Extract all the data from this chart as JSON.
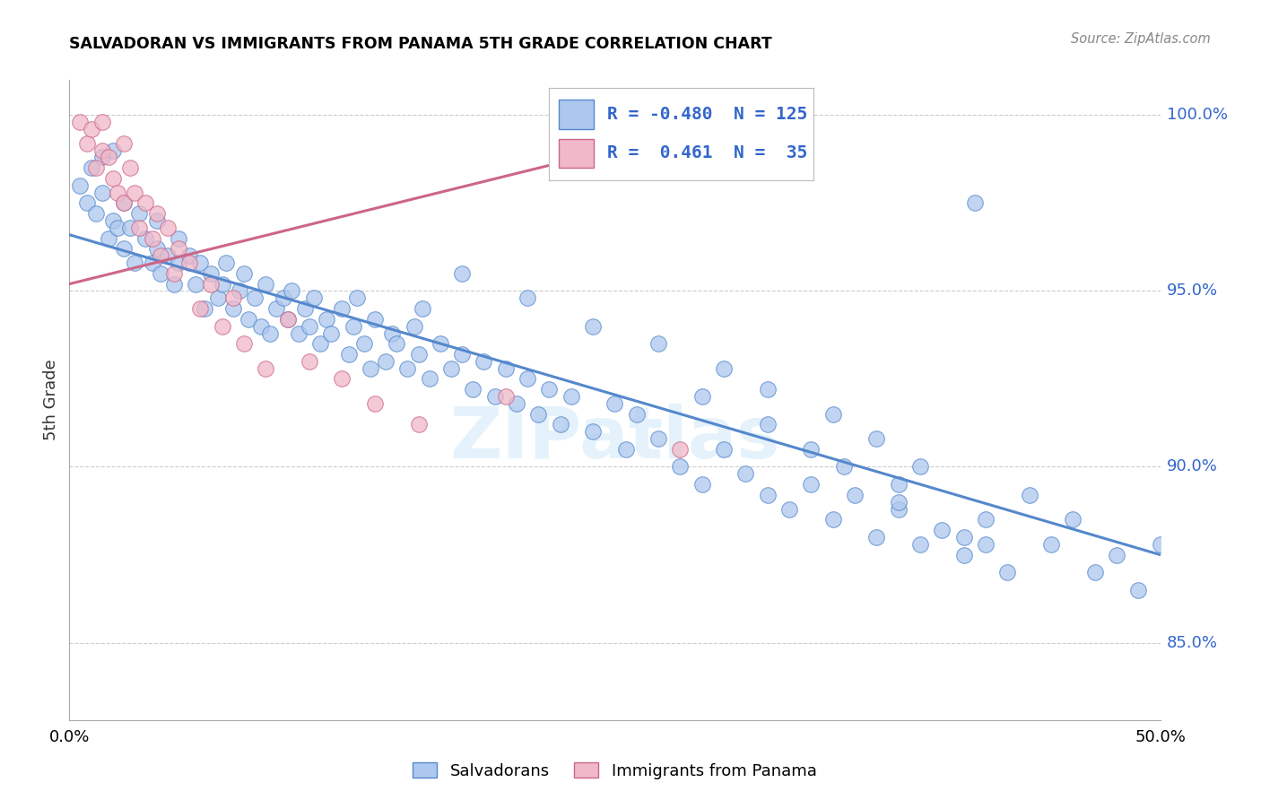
{
  "title": "SALVADORAN VS IMMIGRANTS FROM PANAMA 5TH GRADE CORRELATION CHART",
  "source": "Source: ZipAtlas.com",
  "ylabel": "5th Grade",
  "xlim": [
    0.0,
    0.5
  ],
  "ylim": [
    0.828,
    1.01
  ],
  "yticks": [
    0.85,
    0.9,
    0.95,
    1.0
  ],
  "ytick_labels": [
    "85.0%",
    "90.0%",
    "95.0%",
    "100.0%"
  ],
  "xticks": [
    0.0,
    0.1,
    0.2,
    0.3,
    0.4,
    0.5
  ],
  "blue_color": "#adc8ee",
  "blue_edge_color": "#5588cc",
  "pink_color": "#f0b8c8",
  "pink_edge_color": "#cc6688",
  "legend_R1": "-0.480",
  "legend_N1": "125",
  "legend_R2": "0.461",
  "legend_N2": "35",
  "watermark": "ZIPatlas",
  "blue_line_x": [
    0.0,
    0.5
  ],
  "blue_line_y": [
    0.966,
    0.875
  ],
  "pink_line_x": [
    0.0,
    0.3
  ],
  "pink_line_y": [
    0.952,
    0.998
  ],
  "blue_scatter_x": [
    0.005,
    0.008,
    0.01,
    0.012,
    0.015,
    0.015,
    0.018,
    0.02,
    0.02,
    0.022,
    0.025,
    0.025,
    0.028,
    0.03,
    0.032,
    0.035,
    0.038,
    0.04,
    0.04,
    0.042,
    0.045,
    0.048,
    0.05,
    0.05,
    0.055,
    0.058,
    0.06,
    0.062,
    0.065,
    0.068,
    0.07,
    0.072,
    0.075,
    0.078,
    0.08,
    0.082,
    0.085,
    0.088,
    0.09,
    0.092,
    0.095,
    0.098,
    0.1,
    0.102,
    0.105,
    0.108,
    0.11,
    0.112,
    0.115,
    0.118,
    0.12,
    0.125,
    0.128,
    0.13,
    0.132,
    0.135,
    0.138,
    0.14,
    0.145,
    0.148,
    0.15,
    0.155,
    0.158,
    0.16,
    0.162,
    0.165,
    0.17,
    0.175,
    0.18,
    0.185,
    0.19,
    0.195,
    0.2,
    0.205,
    0.21,
    0.215,
    0.22,
    0.225,
    0.23,
    0.24,
    0.25,
    0.255,
    0.26,
    0.27,
    0.28,
    0.29,
    0.3,
    0.31,
    0.32,
    0.33,
    0.34,
    0.35,
    0.36,
    0.37,
    0.38,
    0.39,
    0.4,
    0.41,
    0.42,
    0.43,
    0.18,
    0.21,
    0.24,
    0.27,
    0.3,
    0.32,
    0.35,
    0.37,
    0.39,
    0.415,
    0.44,
    0.46,
    0.48,
    0.5,
    0.34,
    0.38,
    0.42,
    0.45,
    0.47,
    0.49,
    0.29,
    0.32,
    0.355,
    0.38,
    0.41
  ],
  "blue_scatter_y": [
    0.98,
    0.975,
    0.985,
    0.972,
    0.978,
    0.988,
    0.965,
    0.97,
    0.99,
    0.968,
    0.975,
    0.962,
    0.968,
    0.958,
    0.972,
    0.965,
    0.958,
    0.962,
    0.97,
    0.955,
    0.96,
    0.952,
    0.965,
    0.958,
    0.96,
    0.952,
    0.958,
    0.945,
    0.955,
    0.948,
    0.952,
    0.958,
    0.945,
    0.95,
    0.955,
    0.942,
    0.948,
    0.94,
    0.952,
    0.938,
    0.945,
    0.948,
    0.942,
    0.95,
    0.938,
    0.945,
    0.94,
    0.948,
    0.935,
    0.942,
    0.938,
    0.945,
    0.932,
    0.94,
    0.948,
    0.935,
    0.928,
    0.942,
    0.93,
    0.938,
    0.935,
    0.928,
    0.94,
    0.932,
    0.945,
    0.925,
    0.935,
    0.928,
    0.932,
    0.922,
    0.93,
    0.92,
    0.928,
    0.918,
    0.925,
    0.915,
    0.922,
    0.912,
    0.92,
    0.91,
    0.918,
    0.905,
    0.915,
    0.908,
    0.9,
    0.895,
    0.905,
    0.898,
    0.892,
    0.888,
    0.895,
    0.885,
    0.892,
    0.88,
    0.888,
    0.878,
    0.882,
    0.875,
    0.878,
    0.87,
    0.955,
    0.948,
    0.94,
    0.935,
    0.928,
    0.922,
    0.915,
    0.908,
    0.9,
    0.975,
    0.892,
    0.885,
    0.875,
    0.878,
    0.905,
    0.895,
    0.885,
    0.878,
    0.87,
    0.865,
    0.92,
    0.912,
    0.9,
    0.89,
    0.88
  ],
  "pink_scatter_x": [
    0.005,
    0.008,
    0.01,
    0.012,
    0.015,
    0.015,
    0.018,
    0.02,
    0.022,
    0.025,
    0.025,
    0.028,
    0.03,
    0.032,
    0.035,
    0.038,
    0.04,
    0.042,
    0.045,
    0.048,
    0.05,
    0.055,
    0.06,
    0.065,
    0.07,
    0.075,
    0.08,
    0.09,
    0.1,
    0.11,
    0.125,
    0.14,
    0.16,
    0.2,
    0.28
  ],
  "pink_scatter_y": [
    0.998,
    0.992,
    0.996,
    0.985,
    0.99,
    0.998,
    0.988,
    0.982,
    0.978,
    0.992,
    0.975,
    0.985,
    0.978,
    0.968,
    0.975,
    0.965,
    0.972,
    0.96,
    0.968,
    0.955,
    0.962,
    0.958,
    0.945,
    0.952,
    0.94,
    0.948,
    0.935,
    0.928,
    0.942,
    0.93,
    0.925,
    0.918,
    0.912,
    0.92,
    0.905
  ]
}
